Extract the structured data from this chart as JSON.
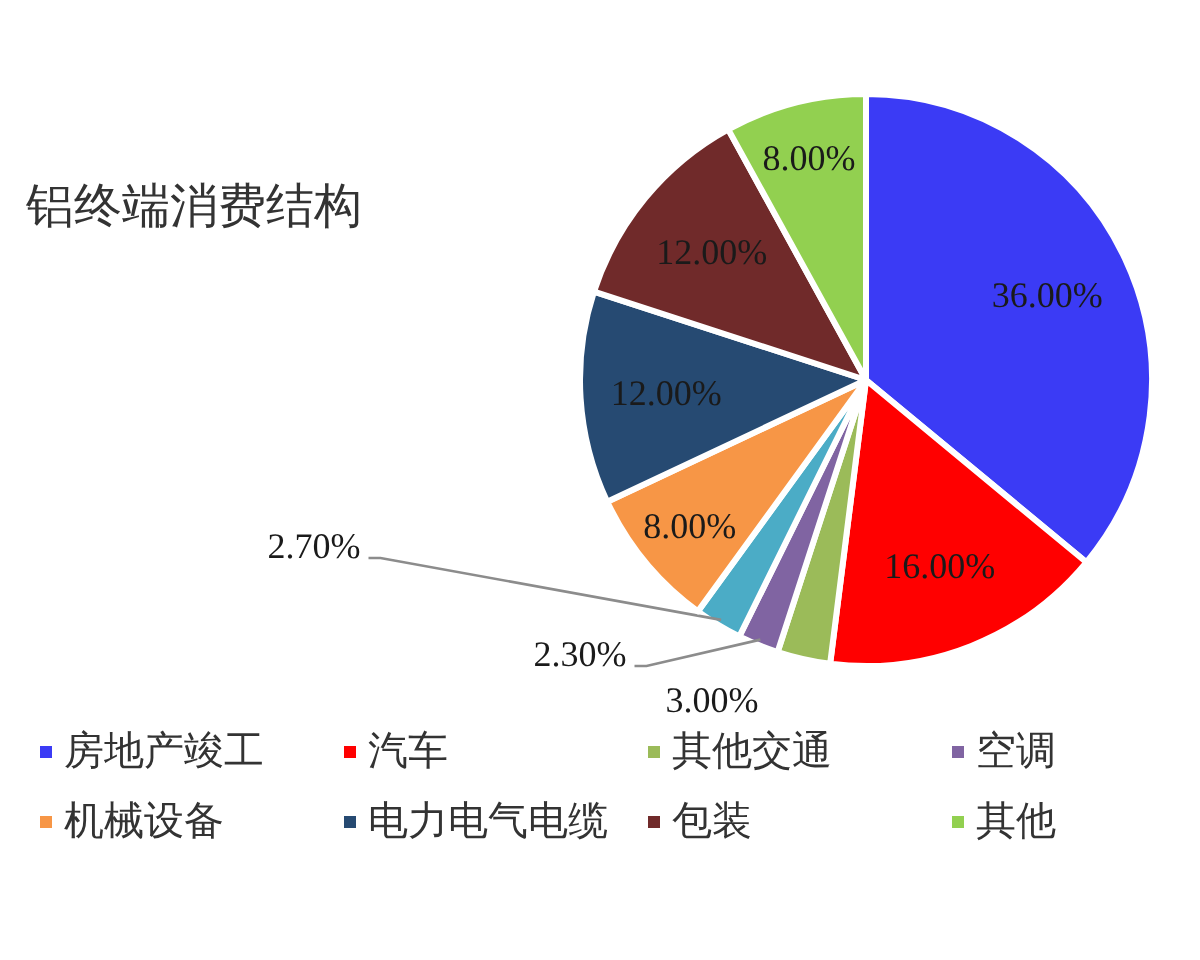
{
  "chart_data": {
    "type": "pie",
    "title": "铝终端消费结构",
    "categories": [
      "房地产竣工",
      "汽车",
      "其他交通",
      "空调",
      null,
      "机械设备",
      "电力电气电缆",
      "包装",
      "其他"
    ],
    "values": [
      36,
      16,
      3,
      2.3,
      2.7,
      8,
      12,
      12,
      8
    ],
    "colors": [
      "#3b3bf5",
      "#ff0000",
      "#9bbb59",
      "#8064a2",
      "#4bacc6",
      "#f79646",
      "#264a72",
      "#702a2a",
      "#92d050"
    ],
    "value_labels": [
      "36.00%",
      "16.00%",
      "3.00%",
      "2.30%",
      "2.70%",
      "8.00%",
      "12.00%",
      "12.00%",
      "8.00%"
    ],
    "legend": "bottom"
  }
}
